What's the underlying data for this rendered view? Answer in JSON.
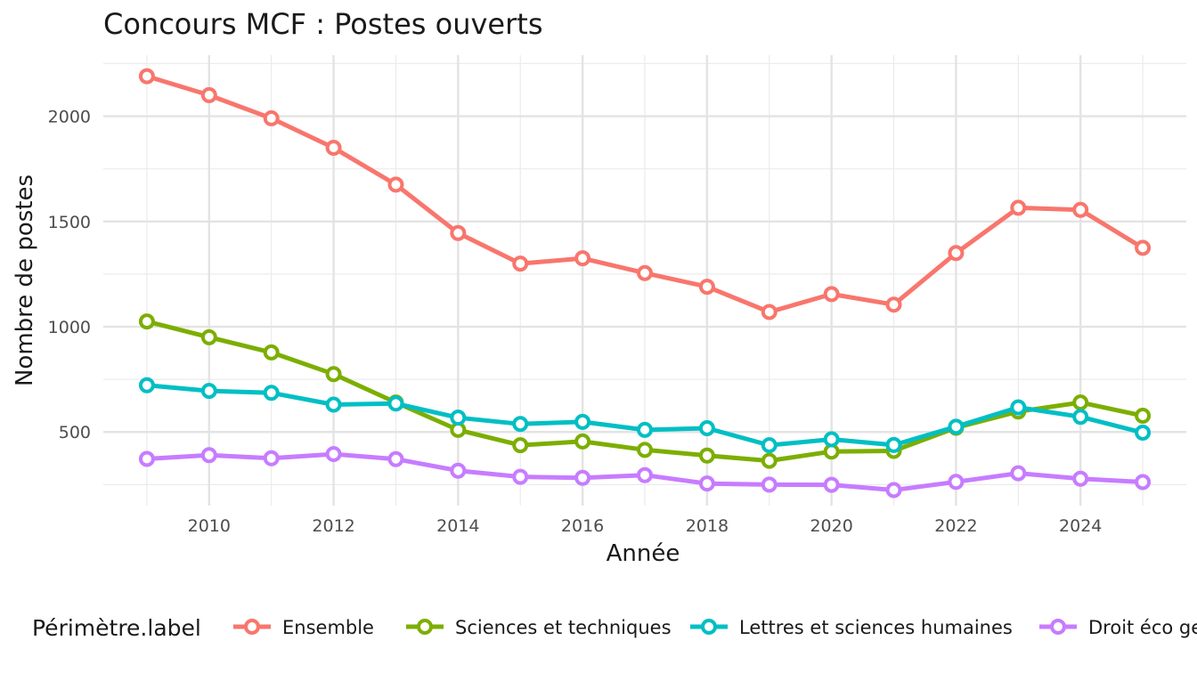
{
  "chart_data": {
    "type": "line",
    "title": "Concours MCF : Postes ouverts",
    "xlabel": "Année",
    "ylabel": "Nombre de postes",
    "x": [
      2009,
      2010,
      2011,
      2012,
      2013,
      2014,
      2015,
      2016,
      2017,
      2018,
      2019,
      2020,
      2021,
      2022,
      2023,
      2024,
      2025
    ],
    "xlim": [
      2008.3,
      2025.7
    ],
    "ylim": [
      150,
      2290
    ],
    "x_ticks": [
      "2010",
      "2012",
      "2014",
      "2016",
      "2018",
      "2020",
      "2022",
      "2024"
    ],
    "y_ticks": [
      "500",
      "1000",
      "1500",
      "2000"
    ],
    "grid": true,
    "legend": {
      "title": "Périmètre.label",
      "position": "bottom"
    },
    "series": [
      {
        "name": "Ensemble",
        "color": "#F8766D",
        "values": [
          2190,
          2100,
          1990,
          1850,
          1675,
          1445,
          1300,
          1325,
          1255,
          1190,
          1070,
          1155,
          1105,
          1350,
          1565,
          1555,
          1375
        ]
      },
      {
        "name": "Sciences et techniques",
        "color": "#7CAE00",
        "values": [
          1025,
          950,
          878,
          775,
          640,
          510,
          437,
          455,
          415,
          388,
          363,
          407,
          410,
          520,
          597,
          640,
          577
        ]
      },
      {
        "name": "Lettres et sciences humaines",
        "color": "#00BFC4",
        "values": [
          722,
          695,
          686,
          630,
          635,
          568,
          538,
          548,
          510,
          518,
          437,
          465,
          438,
          525,
          617,
          572,
          497
        ]
      },
      {
        "name": "Droit éco gestion",
        "color": "#C77CFF",
        "values": [
          372,
          390,
          375,
          395,
          371,
          316,
          287,
          282,
          295,
          255,
          250,
          249,
          224,
          263,
          304,
          278,
          262
        ]
      }
    ]
  }
}
